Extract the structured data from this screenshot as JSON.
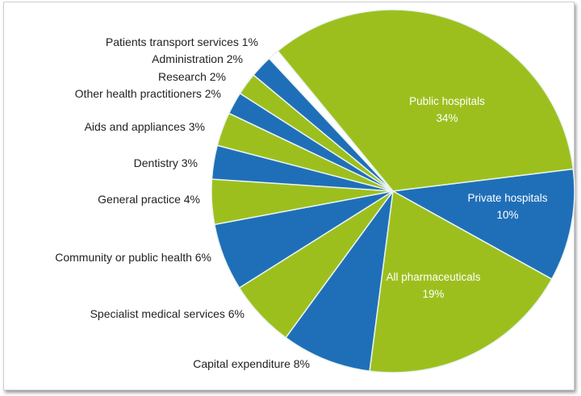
{
  "chart_data": {
    "type": "pie",
    "title": "",
    "colors": {
      "green": "#9dbf1e",
      "blue": "#1f6fb8",
      "gap": "#ffffff"
    },
    "slices": [
      {
        "label": "Public hospitals",
        "value": 34,
        "pct": "34%",
        "color": "#9dbf1e",
        "label_inside": true
      },
      {
        "label": "Private hospitals",
        "value": 10,
        "pct": "10%",
        "color": "#1f6fb8",
        "label_inside": true
      },
      {
        "label": "All  pharmaceuticals",
        "value": 19,
        "pct": "19%",
        "color": "#9dbf1e",
        "label_inside": true
      },
      {
        "label": "Capital expenditure 8%",
        "value": 8,
        "color": "#1f6fb8"
      },
      {
        "label": "Specialist medical services 6%",
        "value": 6,
        "color": "#9dbf1e"
      },
      {
        "label": "Community or public health 6%",
        "value": 6,
        "color": "#1f6fb8"
      },
      {
        "label": "General practice 4%",
        "value": 4,
        "color": "#9dbf1e"
      },
      {
        "label": "Dentistry 3%",
        "value": 3,
        "color": "#1f6fb8"
      },
      {
        "label": "Aids and appliances 3%",
        "value": 3,
        "color": "#9dbf1e"
      },
      {
        "label": "Other health practitioners 2%",
        "value": 2,
        "color": "#1f6fb8"
      },
      {
        "label": "Research 2%",
        "value": 2,
        "color": "#9dbf1e"
      },
      {
        "label": "Administration 2%",
        "value": 2,
        "color": "#1f6fb8"
      },
      {
        "label": "Patients transport services 1%",
        "value": 1,
        "color": "#ffffff"
      }
    ]
  }
}
